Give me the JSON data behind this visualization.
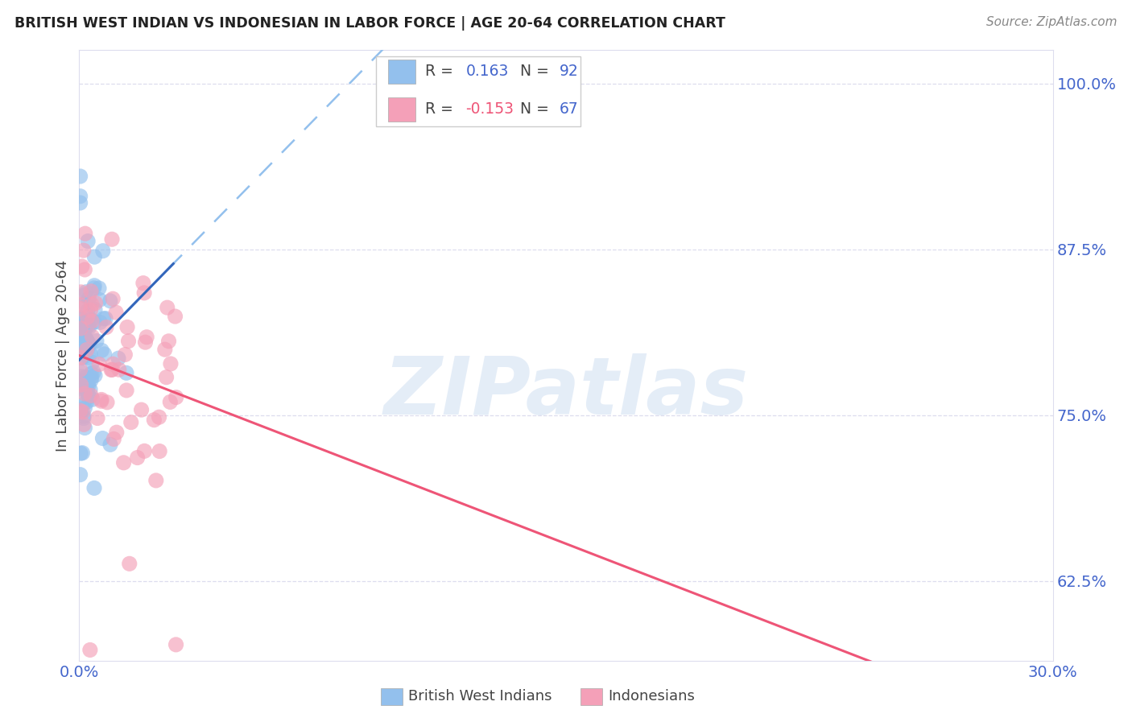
{
  "title": "BRITISH WEST INDIAN VS INDONESIAN IN LABOR FORCE | AGE 20-64 CORRELATION CHART",
  "source": "Source: ZipAtlas.com",
  "ylabel": "In Labor Force | Age 20-64",
  "R_blue": 0.163,
  "N_blue": 92,
  "R_pink": -0.153,
  "N_pink": 67,
  "xlim": [
    0.0,
    0.3
  ],
  "ylim": [
    0.565,
    1.025
  ],
  "yticks": [
    0.625,
    0.75,
    0.875,
    1.0
  ],
  "ytick_labels": [
    "62.5%",
    "75.0%",
    "87.5%",
    "100.0%"
  ],
  "xtick_left_label": "0.0%",
  "xtick_right_label": "30.0%",
  "blue_color": "#93C0ED",
  "pink_color": "#F4A0B8",
  "trend_blue_solid_color": "#3366BB",
  "trend_blue_dash_color": "#93C0ED",
  "trend_pink_color": "#EE5577",
  "axis_tick_color": "#4466CC",
  "title_color": "#222222",
  "source_color": "#888888",
  "ylabel_color": "#444444",
  "background_color": "#FFFFFF",
  "grid_color": "#DDDDEE",
  "border_color": "#DDDDEE",
  "watermark": "ZIPatlas",
  "watermark_color": "#C5D8EF",
  "legend_edge_color": "#CCCCCC",
  "blue_seed": 1234,
  "pink_seed": 5678
}
